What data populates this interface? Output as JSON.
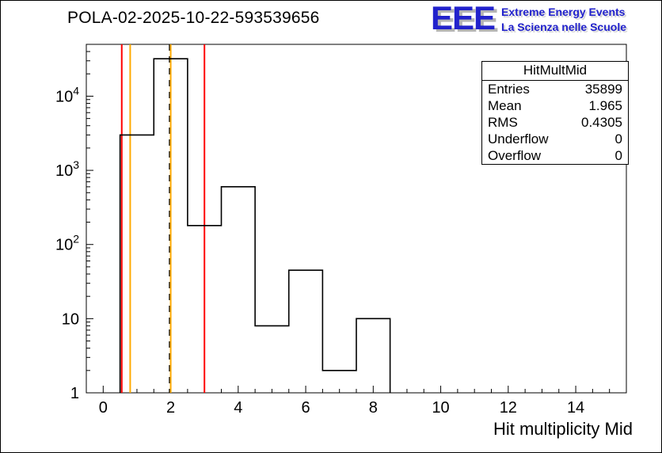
{
  "chart_data": {
    "type": "bar",
    "subtype": "step-histogram",
    "title": "POLA-02-2025-10-22-593539656",
    "xlabel": "Hit multiplicity Mid",
    "ylabel": "",
    "yscale": "log",
    "grid": false,
    "legend": "none",
    "xlim": [
      -0.5,
      15.5
    ],
    "ylim": [
      1,
      50000
    ],
    "x_bin_edges": [
      0.5,
      1.5,
      2.5,
      3.5,
      4.5,
      5.5,
      6.5,
      7.5,
      8.5
    ],
    "values": [
      3000,
      32000,
      180,
      600,
      8,
      45,
      2,
      10
    ],
    "x_major_ticks": [
      0,
      2,
      4,
      6,
      8,
      10,
      12,
      14
    ],
    "x_minor_step": 0.5,
    "y_major_ticks": [
      1,
      10,
      100,
      1000,
      10000
    ],
    "line_color": "#000000",
    "vlines": [
      {
        "x": 0.55,
        "color": "#ff0000",
        "style": "solid"
      },
      {
        "x": 0.8,
        "color": "#ffaa00",
        "style": "solid"
      },
      {
        "x": 1.965,
        "color": "#000000",
        "style": "dashed"
      },
      {
        "x": 2.0,
        "color": "#ffaa00",
        "style": "solid"
      },
      {
        "x": 3.0,
        "color": "#ff0000",
        "style": "solid"
      }
    ]
  },
  "stats": {
    "title": "HitMultMid",
    "rows": [
      {
        "label": "Entries",
        "value": "35899"
      },
      {
        "label": "Mean",
        "value": "1.965"
      },
      {
        "label": "RMS",
        "value": "0.4305"
      },
      {
        "label": "Underflow",
        "value": "0"
      },
      {
        "label": "Overflow",
        "value": "0"
      }
    ]
  },
  "logo": {
    "eee": "EEE",
    "line1": "Extreme Energy Events",
    "line2": "La Scienza nelle Scuole",
    "color": "#2222cc"
  }
}
